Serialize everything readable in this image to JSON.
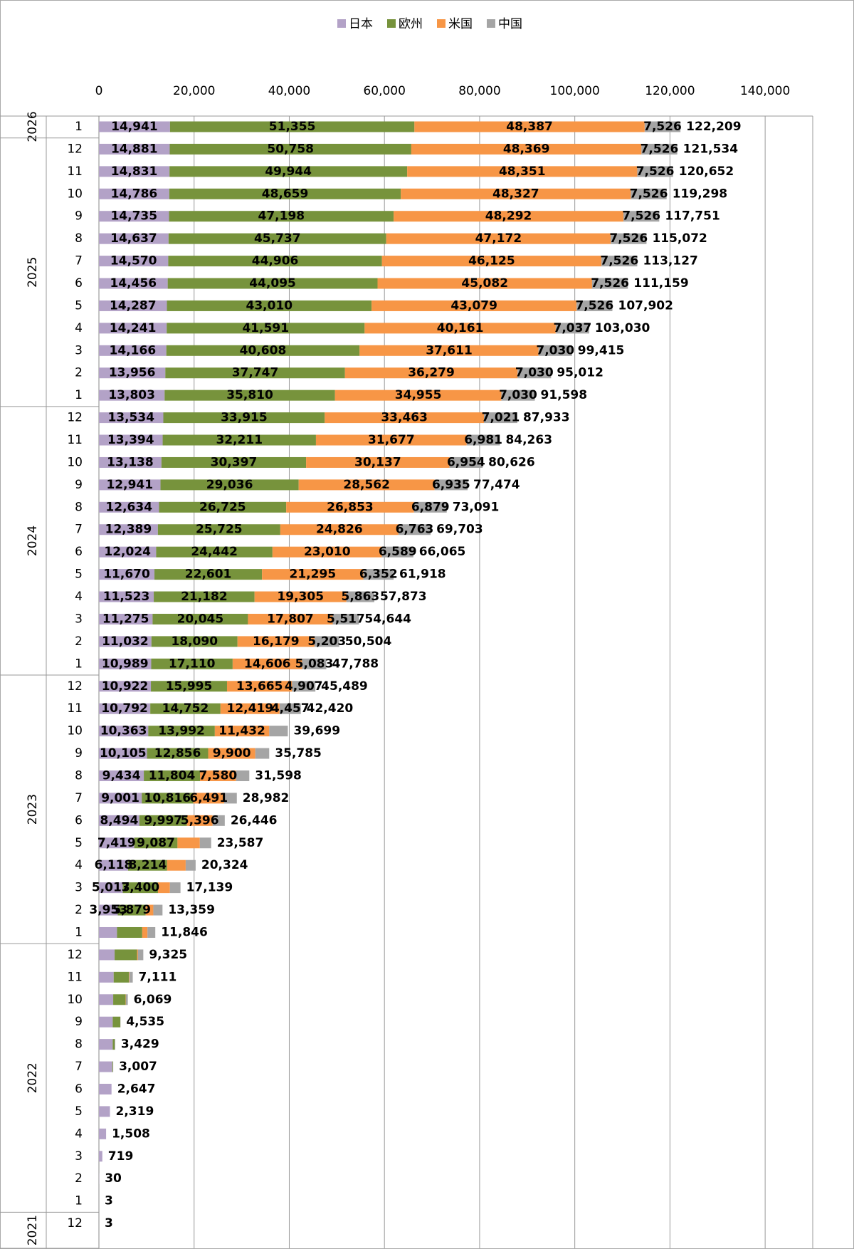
{
  "chart_data": {
    "type": "stacked-barh",
    "categories": [
      "1",
      "12",
      "11",
      "10",
      "9",
      "8",
      "7",
      "6",
      "5",
      "4",
      "3",
      "2",
      "1",
      "12",
      "11",
      "10",
      "9",
      "8",
      "7",
      "6",
      "5",
      "4",
      "3",
      "2",
      "1",
      "12",
      "11",
      "10",
      "9",
      "8",
      "7",
      "6",
      "5",
      "4",
      "3",
      "2",
      "1",
      "12",
      "11",
      "10",
      "9",
      "8",
      "7",
      "6",
      "5",
      "4",
      "3",
      "2",
      "1",
      "12"
    ],
    "years": [
      "2026",
      "2025",
      "2025",
      "2025",
      "2025",
      "2025",
      "2025",
      "2025",
      "2025",
      "2025",
      "2025",
      "2025",
      "2025",
      "2024",
      "2024",
      "2024",
      "2024",
      "2024",
      "2024",
      "2024",
      "2024",
      "2024",
      "2024",
      "2024",
      "2024",
      "2023",
      "2023",
      "2023",
      "2023",
      "2023",
      "2023",
      "2023",
      "2023",
      "2023",
      "2023",
      "2023",
      "2023",
      "2022",
      "2022",
      "2022",
      "2022",
      "2022",
      "2022",
      "2022",
      "2022",
      "2022",
      "2022",
      "2022",
      "2022",
      "2021"
    ],
    "series": [
      {
        "name": "日本",
        "color": "#b3a2c7",
        "values": [
          14941,
          14881,
          14831,
          14786,
          14735,
          14637,
          14570,
          14456,
          14287,
          14241,
          14166,
          13956,
          13803,
          13534,
          13394,
          13138,
          12941,
          12634,
          12389,
          12024,
          11670,
          11523,
          11275,
          11032,
          10989,
          10922,
          10792,
          10363,
          10105,
          9434,
          9001,
          8494,
          7419,
          6118,
          5013,
          3953,
          3800,
          3300,
          3100,
          3000,
          2900,
          2900,
          2800,
          2647,
          2319,
          1508,
          719,
          30,
          3,
          3
        ],
        "value_labels": [
          "14,941",
          "14,881",
          "14,831",
          "14,786",
          "14,735",
          "14,637",
          "14,570",
          "14,456",
          "14,287",
          "14,241",
          "14,166",
          "13,956",
          "13,803",
          "13,534",
          "13,394",
          "13,138",
          "12,941",
          "12,634",
          "12,389",
          "12,024",
          "11,670",
          "11,523",
          "11,275",
          "11,032",
          "10,989",
          "10,922",
          "10,792",
          "10,363",
          "10,105",
          "9,434",
          "9,001",
          "8,494",
          "7,419",
          "6,118",
          "5,013",
          "3,953",
          null,
          null,
          null,
          null,
          null,
          null,
          null,
          null,
          null,
          null,
          null,
          null,
          null,
          null
        ]
      },
      {
        "name": "欧州",
        "color": "#77933c",
        "values": [
          51355,
          50758,
          49944,
          48659,
          47198,
          45737,
          44906,
          44095,
          43010,
          41591,
          40608,
          37747,
          35810,
          33915,
          32211,
          30397,
          29036,
          26725,
          25725,
          24442,
          22601,
          21182,
          20045,
          18090,
          17110,
          15995,
          14752,
          13992,
          12856,
          11804,
          10816,
          9997,
          9087,
          8214,
          7400,
          5879,
          5300,
          4700,
          3200,
          2600,
          1600,
          400,
          150,
          0,
          0,
          0,
          0,
          0,
          0,
          0
        ],
        "value_labels": [
          "51,355",
          "50,758",
          "49,944",
          "48,659",
          "47,198",
          "45,737",
          "44,906",
          "44,095",
          "43,010",
          "41,591",
          "40,608",
          "37,747",
          "35,810",
          "33,915",
          "32,211",
          "30,397",
          "29,036",
          "26,725",
          "25,725",
          "24,442",
          "22,601",
          "21,182",
          "20,045",
          "18,090",
          "17,110",
          "15,995",
          "14,752",
          "13,992",
          "12,856",
          "11,804",
          "10,816",
          "9,997",
          "9,087",
          "8,214",
          "7,400",
          "5,879",
          null,
          null,
          null,
          null,
          null,
          null,
          null,
          null,
          null,
          null,
          null,
          null,
          null,
          null
        ]
      },
      {
        "name": "米国",
        "color": "#f79646",
        "values": [
          48387,
          48369,
          48351,
          48327,
          48292,
          47172,
          46125,
          45082,
          43079,
          40161,
          37611,
          36279,
          34955,
          33463,
          31677,
          30137,
          28562,
          26853,
          24826,
          23010,
          21295,
          19305,
          17807,
          16179,
          14606,
          13665,
          12419,
          11432,
          9900,
          7580,
          6491,
          5396,
          4700,
          3900,
          2500,
          1600,
          1100,
          200,
          100,
          69,
          0,
          0,
          0,
          0,
          0,
          0,
          0,
          0,
          0,
          0
        ],
        "value_labels": [
          "48,387",
          "48,369",
          "48,351",
          "48,327",
          "48,292",
          "47,172",
          "46,125",
          "45,082",
          "43,079",
          "40,161",
          "37,611",
          "36,279",
          "34,955",
          "33,463",
          "31,677",
          "30,137",
          "28,562",
          "26,853",
          "24,826",
          "23,010",
          "21,295",
          "19,305",
          "17,807",
          "16,179",
          "14,606",
          "13,665",
          "12,419",
          "11,432",
          "9,900",
          "7,580",
          "6,491",
          "5,396",
          null,
          null,
          null,
          null,
          null,
          null,
          null,
          null,
          null,
          null,
          null,
          null,
          null,
          null,
          null,
          null,
          null,
          null
        ]
      },
      {
        "name": "中国",
        "color": "#a5a5a5",
        "values": [
          7526,
          7526,
          7526,
          7526,
          7526,
          7526,
          7526,
          7526,
          7526,
          7037,
          7030,
          7030,
          7030,
          7021,
          6981,
          6954,
          6935,
          6879,
          6763,
          6589,
          6352,
          5863,
          5517,
          5203,
          5083,
          4907,
          4457,
          3912,
          2924,
          2780,
          2674,
          2559,
          2381,
          2092,
          2226,
          1927,
          1646,
          1125,
          711,
          400,
          35,
          129,
          57,
          0,
          0,
          0,
          0,
          0,
          0,
          0
        ],
        "value_labels": [
          "7,526",
          "7,526",
          "7,526",
          "7,526",
          "7,526",
          "7,526",
          "7,526",
          "7,526",
          "7,526",
          "7,037",
          "7,030",
          "7,030",
          "7,030",
          "7,021",
          "6,981",
          "6,954",
          "6,935",
          "6,879",
          "6,763",
          "6,589",
          "6,352",
          "5,863",
          "5,517",
          "5,203",
          "5,083",
          "4,907",
          "4,457",
          null,
          null,
          null,
          null,
          null,
          null,
          null,
          null,
          null,
          null,
          null,
          null,
          null,
          null,
          null,
          null,
          null,
          null,
          null,
          null,
          null,
          null,
          null
        ]
      }
    ],
    "total_labels": [
      "122,209",
      "121,534",
      "120,652",
      "119,298",
      "117,751",
      "115,072",
      "113,127",
      "111,159",
      "107,902",
      "103,030",
      "99,415",
      "95,012",
      "91,598",
      "87,933",
      "84,263",
      "80,626",
      "77,474",
      "73,091",
      "69,703",
      "66,065",
      "61,918",
      "57,873",
      "54,644",
      "50,504",
      "47,788",
      "45,489",
      "42,420",
      "39,699",
      "35,785",
      "31,598",
      "28,982",
      "26,446",
      "23,587",
      "20,324",
      "17,139",
      "13,359",
      "11,846",
      "9,325",
      "7,111",
      "6,069",
      "4,535",
      "3,429",
      "3,007",
      "2,647",
      "2,319",
      "1,508",
      "719",
      "30",
      "3",
      "3"
    ],
    "xlim": [
      0,
      150000
    ],
    "xticks": [
      0,
      {
        "value": 20000,
        "label": "20,000"
      },
      {
        "value": 40000,
        "label": "40,000"
      },
      {
        "value": 60000,
        "label": "60,000"
      },
      {
        "value": 80000,
        "label": "80,000"
      },
      {
        "value": 100000,
        "label": "100,000"
      },
      {
        "value": 120000,
        "label": "120,000"
      },
      {
        "value": 140000,
        "label": "140,000"
      }
    ],
    "grid": true,
    "legend": "top"
  }
}
